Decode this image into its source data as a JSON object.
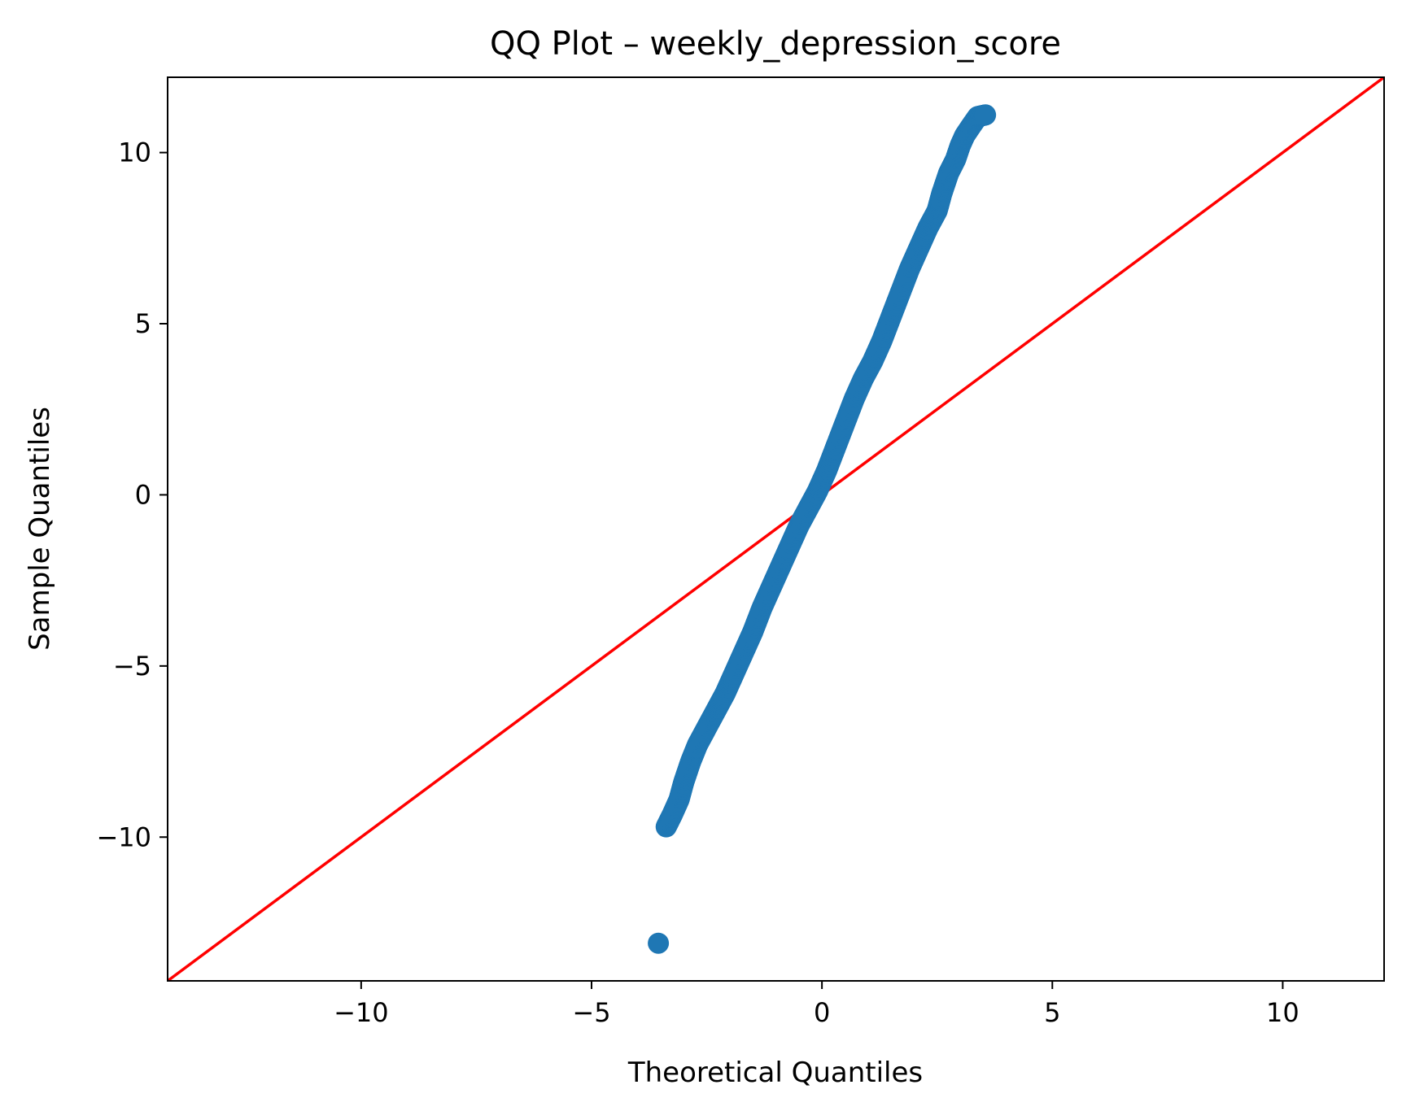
{
  "chart_data": {
    "type": "scatter",
    "title": "QQ Plot – weekly_depression_score",
    "xlabel": "Theoretical Quantiles",
    "ylabel": "Sample Quantiles",
    "xlim": [
      -14.2,
      12.2
    ],
    "ylim": [
      -14.2,
      12.2
    ],
    "x_ticks": [
      -10,
      -5,
      0,
      5,
      10
    ],
    "y_ticks": [
      -10,
      -5,
      0,
      5,
      10
    ],
    "x_tick_labels": [
      "−10",
      "−5",
      "0",
      "5",
      "10"
    ],
    "y_tick_labels": [
      "−10",
      "−5",
      "0",
      "5",
      "10"
    ],
    "grid": false,
    "legend": "none",
    "points_color": "#1f77b4",
    "reference_line": {
      "color": "#ff0000",
      "slope": 1,
      "intercept": 0
    },
    "points": {
      "x": [
        -3.55,
        -3.38,
        -3.25,
        -3.1,
        -3.0,
        -2.85,
        -2.7,
        -2.5,
        -2.3,
        -2.1,
        -1.9,
        -1.7,
        -1.5,
        -1.3,
        -1.1,
        -0.9,
        -0.7,
        -0.5,
        -0.3,
        -0.1,
        0.1,
        0.3,
        0.5,
        0.7,
        0.9,
        1.1,
        1.3,
        1.5,
        1.7,
        1.9,
        2.1,
        2.3,
        2.5,
        2.6,
        2.75,
        2.9,
        3.0,
        3.1,
        3.25,
        3.38,
        3.55
      ],
      "y": [
        -13.1,
        -9.7,
        -9.35,
        -8.9,
        -8.4,
        -7.8,
        -7.3,
        -6.8,
        -6.3,
        -5.8,
        -5.2,
        -4.6,
        -4.0,
        -3.3,
        -2.7,
        -2.1,
        -1.5,
        -0.9,
        -0.4,
        0.1,
        0.7,
        1.4,
        2.1,
        2.8,
        3.4,
        3.9,
        4.5,
        5.2,
        5.9,
        6.6,
        7.2,
        7.8,
        8.3,
        8.8,
        9.4,
        9.8,
        10.2,
        10.5,
        10.8,
        11.05,
        11.1
      ]
    }
  }
}
